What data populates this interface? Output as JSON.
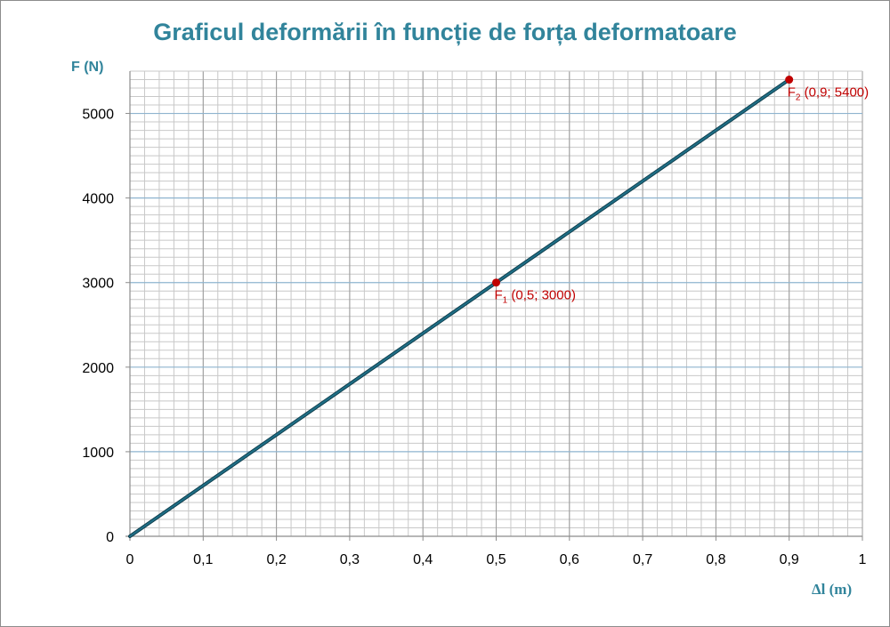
{
  "chart_data": {
    "type": "line",
    "title": "Graficul deformării în funcție de forța deformatoare",
    "xlabel": "Δl (m)",
    "ylabel": "F (N)",
    "xlim": [
      0,
      1
    ],
    "ylim": [
      0,
      5500
    ],
    "x_ticks": [
      "0",
      "0,1",
      "0,2",
      "0,3",
      "0,4",
      "0,5",
      "0,6",
      "0,7",
      "0,8",
      "0,9",
      "1"
    ],
    "x_tick_values": [
      0,
      0.1,
      0.2,
      0.3,
      0.4,
      0.5,
      0.6,
      0.7,
      0.8,
      0.9,
      1
    ],
    "y_ticks": [
      "0",
      "1000",
      "2000",
      "3000",
      "4000",
      "5000"
    ],
    "y_tick_values": [
      0,
      1000,
      2000,
      3000,
      4000,
      5000
    ],
    "grid": true,
    "legend": "none",
    "series": [
      {
        "x": [
          0,
          0.9
        ],
        "y": [
          0,
          5400
        ],
        "color": "#1f6e85"
      }
    ],
    "points": [
      {
        "x": 0.5,
        "y": 3000,
        "label_main": "F",
        "label_sub": "1",
        "label_rest": " (0,5; 3000)",
        "color": "#c00000"
      },
      {
        "x": 0.9,
        "y": 5400,
        "label_main": "F",
        "label_sub": "2",
        "label_rest": " (0,9; 5400)",
        "color": "#c00000"
      }
    ],
    "colors": {
      "title": "#31849b",
      "major_grid": "#8eb4cf",
      "minor_grid": "#c8c8c8",
      "axis": "#8c8c8c",
      "line": "#1f6e85",
      "marker": "#c00000"
    }
  }
}
